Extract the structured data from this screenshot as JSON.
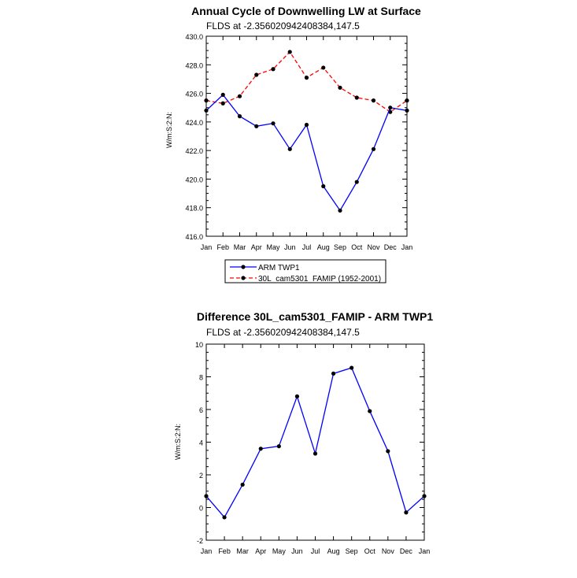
{
  "chart_data": [
    {
      "type": "line",
      "title": "Annual Cycle of Downwelling LW at Surface",
      "subtitle": "FLDS at -2.356020942408384,147.5",
      "ylabel": "W/m:S:2:N:",
      "xlabel": "",
      "categories": [
        "Jan",
        "Feb",
        "Mar",
        "Apr",
        "May",
        "Jun",
        "Jul",
        "Aug",
        "Sep",
        "Oct",
        "Nov",
        "Dec",
        "Jan"
      ],
      "ylim": [
        416,
        430
      ],
      "yticks": [
        "416.0",
        "418.0",
        "420.0",
        "422.0",
        "424.0",
        "426.0",
        "428.0",
        "430.0"
      ],
      "series": [
        {
          "name": "ARM TWP1",
          "color": "#0000ff",
          "dash": "solid",
          "values": [
            424.8,
            425.9,
            424.4,
            423.7,
            423.9,
            422.1,
            423.8,
            419.5,
            417.8,
            419.8,
            422.1,
            425.0,
            424.8
          ]
        },
        {
          "name": "30L_cam5301_FAMIP (1952-2001)",
          "color": "#ff0000",
          "dash": "dashed",
          "values": [
            425.5,
            425.3,
            425.8,
            427.3,
            427.7,
            428.9,
            427.1,
            427.8,
            426.4,
            425.7,
            425.5,
            424.7,
            425.5
          ]
        }
      ],
      "legend": "bottom"
    },
    {
      "type": "line",
      "title": "Difference 30L_cam5301_FAMIP - ARM TWP1",
      "subtitle": "FLDS at -2.356020942408384,147.5",
      "ylabel": "W/m:S:2:N:",
      "xlabel": "",
      "categories": [
        "Jan",
        "Feb",
        "Mar",
        "Apr",
        "May",
        "Jun",
        "Jul",
        "Aug",
        "Sep",
        "Oct",
        "Nov",
        "Dec",
        "Jan"
      ],
      "ylim": [
        -2,
        10
      ],
      "yticks": [
        "-2",
        "0",
        "2",
        "4",
        "6",
        "8",
        "10"
      ],
      "series": [
        {
          "name": "",
          "color": "#0000ff",
          "dash": "solid",
          "values": [
            0.7,
            -0.6,
            1.4,
            3.6,
            3.75,
            6.8,
            3.3,
            8.2,
            8.55,
            5.9,
            3.45,
            -0.3,
            0.7
          ]
        }
      ]
    }
  ]
}
